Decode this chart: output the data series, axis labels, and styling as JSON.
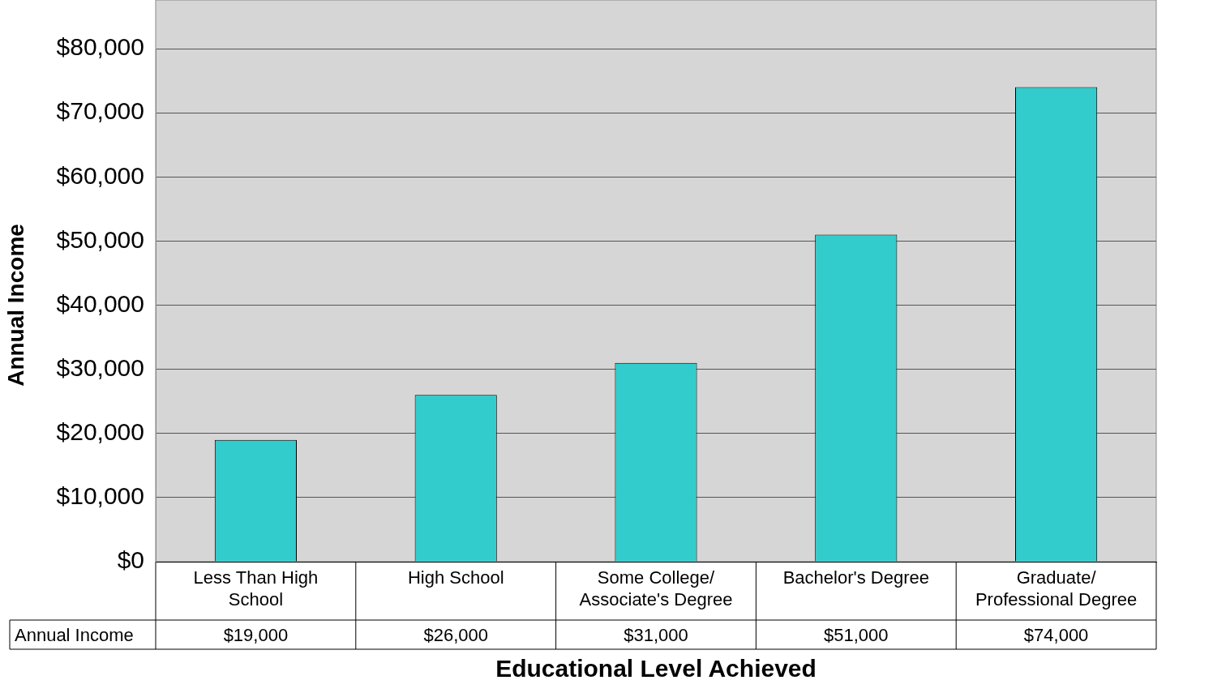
{
  "chart_data": {
    "type": "bar",
    "xlabel": "Educational Level Achieved",
    "ylabel": "Annual Income",
    "categories": [
      "Less Than High School",
      "High School",
      "Some College/ Associate's Degree",
      "Bachelor's Degree",
      "Graduate/ Professional Degree"
    ],
    "series": [
      {
        "name": "Annual Income",
        "color": "#33cccc",
        "values": [
          19000,
          26000,
          31000,
          51000,
          74000
        ],
        "value_labels": [
          "$19,000",
          "$26,000",
          "$31,000",
          "$51,000",
          "$74,000"
        ]
      }
    ],
    "ylim": [
      0,
      80000
    ],
    "yticks": [
      {
        "value": 0,
        "label": "$0"
      },
      {
        "value": 10000,
        "label": "$10,000"
      },
      {
        "value": 20000,
        "label": "$20,000"
      },
      {
        "value": 30000,
        "label": "$30,000"
      },
      {
        "value": 40000,
        "label": "$40,000"
      },
      {
        "value": 50000,
        "label": "$50,000"
      },
      {
        "value": 60000,
        "label": "$60,000"
      },
      {
        "value": 70000,
        "label": "$70,000"
      },
      {
        "value": 80000,
        "label": "$80,000"
      }
    ],
    "grid": "y",
    "legend": false
  }
}
